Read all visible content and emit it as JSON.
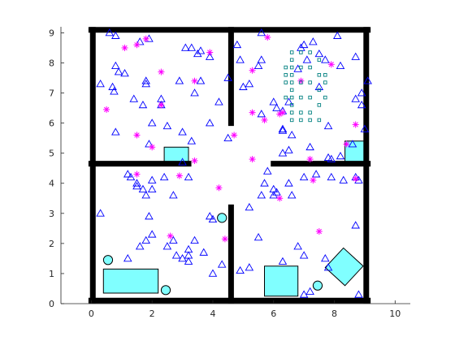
{
  "chart_data": {
    "type": "scatter",
    "title": "",
    "xlabel": "",
    "ylabel": "",
    "xlim": [
      -1,
      10.5
    ],
    "ylim": [
      0,
      9.2
    ],
    "x_ticks": [
      "0",
      "2",
      "4",
      "6",
      "8",
      "10"
    ],
    "y_ticks": [
      "0",
      "1",
      "2",
      "3",
      "4",
      "5",
      "6",
      "7",
      "8",
      "9"
    ],
    "grid": false,
    "legend": "none",
    "colors": {
      "wall": "#000000",
      "obstacle_fill": "#80ffff",
      "triangle": "#0000ff",
      "star": "#ff00ff",
      "square": "#008080"
    },
    "walls": [
      {
        "x": [
          0,
          9.1
        ],
        "y": [
          9.1,
          9.1
        ]
      },
      {
        "x": [
          0,
          9.1
        ],
        "y": [
          0.1,
          0.1
        ]
      },
      {
        "x": [
          0.05,
          0.05
        ],
        "y": [
          0.1,
          9.1
        ]
      },
      {
        "x": [
          9.05,
          9.05
        ],
        "y": [
          0.1,
          9.1
        ]
      },
      {
        "x": [
          4.6,
          4.6
        ],
        "y": [
          6.0,
          9.1
        ]
      },
      {
        "x": [
          4.6,
          4.6
        ],
        "y": [
          0.1,
          3.2
        ]
      },
      {
        "x": [
          0,
          3.2
        ],
        "y": [
          4.65,
          4.65
        ]
      },
      {
        "x": [
          6.0,
          9.1
        ],
        "y": [
          4.65,
          4.65
        ]
      }
    ],
    "rect_obstacles": [
      {
        "points": [
          [
            0.4,
            0.35
          ],
          [
            2.2,
            0.35
          ],
          [
            2.2,
            1.15
          ],
          [
            0.4,
            1.15
          ]
        ]
      },
      {
        "points": [
          [
            2.4,
            4.7
          ],
          [
            3.2,
            4.7
          ],
          [
            3.2,
            5.2
          ],
          [
            2.4,
            5.2
          ]
        ]
      },
      {
        "points": [
          [
            8.35,
            4.7
          ],
          [
            9.0,
            4.7
          ],
          [
            9.0,
            5.4
          ],
          [
            8.35,
            5.4
          ]
        ]
      },
      {
        "points": [
          [
            5.7,
            0.25
          ],
          [
            6.8,
            0.25
          ],
          [
            6.8,
            1.25
          ],
          [
            5.7,
            1.25
          ]
        ]
      },
      {
        "points": [
          [
            7.7,
            1.2
          ],
          [
            8.35,
            0.6
          ],
          [
            8.95,
            1.25
          ],
          [
            8.3,
            1.85
          ]
        ]
      }
    ],
    "circle_obstacles": [
      {
        "x": 0.55,
        "y": 1.45,
        "r": 0.15
      },
      {
        "x": 2.45,
        "y": 0.45,
        "r": 0.15
      },
      {
        "x": 4.3,
        "y": 2.85,
        "r": 0.15
      },
      {
        "x": 7.45,
        "y": 0.6,
        "r": 0.15
      }
    ],
    "series": [
      {
        "marker": "triangle",
        "points": [
          [
            0.3,
            7.3
          ],
          [
            0.6,
            9.0
          ],
          [
            0.8,
            8.9
          ],
          [
            0.7,
            7.2
          ],
          [
            0.8,
            7.9
          ],
          [
            0.9,
            7.7
          ],
          [
            0.8,
            5.7
          ],
          [
            0.75,
            7.05
          ],
          [
            1.1,
            7.65
          ],
          [
            1.4,
            6.8
          ],
          [
            1.6,
            8.7
          ],
          [
            1.7,
            6.6
          ],
          [
            1.8,
            7.4
          ],
          [
            1.8,
            7.3
          ],
          [
            1.9,
            8.8
          ],
          [
            2.0,
            6.0
          ],
          [
            1.9,
            5.3
          ],
          [
            2.3,
            6.8
          ],
          [
            2.3,
            6.6
          ],
          [
            2.5,
            5.9
          ],
          [
            2.9,
            7.4
          ],
          [
            3.1,
            8.5
          ],
          [
            3.3,
            8.5
          ],
          [
            3.4,
            7.0
          ],
          [
            3.5,
            8.3
          ],
          [
            3.6,
            8.4
          ],
          [
            3.0,
            5.7
          ],
          [
            3.3,
            5.4
          ],
          [
            3.9,
            6.0
          ],
          [
            3.9,
            8.2
          ],
          [
            3.6,
            7.4
          ],
          [
            4.2,
            6.7
          ],
          [
            4.5,
            7.5
          ],
          [
            4.5,
            5.5
          ],
          [
            4.8,
            8.6
          ],
          [
            4.9,
            8.1
          ],
          [
            5.0,
            7.2
          ],
          [
            5.2,
            7.3
          ],
          [
            5.5,
            7.9
          ],
          [
            5.6,
            9.0
          ],
          [
            5.6,
            6.3
          ],
          [
            5.6,
            8.1
          ],
          [
            6.0,
            6.7
          ],
          [
            6.1,
            6.5
          ],
          [
            6.3,
            6.4
          ],
          [
            6.3,
            5.8
          ],
          [
            6.3,
            5.75
          ],
          [
            6.5,
            6.7
          ],
          [
            6.6,
            5.6
          ],
          [
            6.8,
            7.8
          ],
          [
            6.9,
            8.5
          ],
          [
            7.0,
            8.6
          ],
          [
            7.1,
            8.1
          ],
          [
            7.3,
            8.7
          ],
          [
            7.5,
            7.2
          ],
          [
            7.5,
            8.3
          ],
          [
            7.7,
            8.1
          ],
          [
            7.8,
            5.9
          ],
          [
            8.1,
            8.9
          ],
          [
            8.2,
            7.9
          ],
          [
            8.6,
            5.3
          ],
          [
            8.7,
            6.8
          ],
          [
            8.9,
            6.6
          ],
          [
            9.0,
            5.8
          ],
          [
            9.1,
            7.4
          ],
          [
            6.3,
            5.0
          ],
          [
            6.5,
            5.1
          ],
          [
            7.2,
            5.2
          ],
          [
            7.8,
            4.85
          ],
          [
            7.9,
            4.8
          ],
          [
            8.2,
            4.9
          ],
          [
            8.7,
            8.2
          ],
          [
            8.9,
            7.0
          ],
          [
            0.3,
            3.0
          ],
          [
            1.2,
            4.3
          ],
          [
            1.3,
            4.2
          ],
          [
            1.5,
            4.0
          ],
          [
            1.5,
            3.9
          ],
          [
            1.7,
            3.8
          ],
          [
            1.8,
            3.6
          ],
          [
            2.0,
            4.1
          ],
          [
            2.0,
            3.8
          ],
          [
            2.4,
            4.2
          ],
          [
            2.7,
            3.6
          ],
          [
            3.0,
            4.7
          ],
          [
            3.2,
            4.2
          ],
          [
            1.9,
            2.9
          ],
          [
            2.0,
            2.3
          ],
          [
            1.8,
            2.1
          ],
          [
            1.6,
            1.9
          ],
          [
            1.2,
            1.5
          ],
          [
            2.5,
            1.9
          ],
          [
            2.7,
            2.1
          ],
          [
            2.8,
            1.6
          ],
          [
            3.2,
            1.8
          ],
          [
            3.0,
            1.5
          ],
          [
            3.4,
            2.1
          ],
          [
            3.9,
            2.9
          ],
          [
            4.0,
            2.8
          ],
          [
            3.7,
            1.7
          ],
          [
            3.2,
            1.6
          ],
          [
            4.3,
            1.3
          ],
          [
            4.0,
            1.0
          ],
          [
            3.2,
            1.4
          ],
          [
            4.9,
            1.1
          ],
          [
            5.2,
            1.2
          ],
          [
            5.5,
            2.2
          ],
          [
            5.2,
            3.2
          ],
          [
            5.6,
            3.6
          ],
          [
            5.7,
            4.0
          ],
          [
            5.8,
            4.4
          ],
          [
            6.0,
            3.8
          ],
          [
            6.0,
            3.6
          ],
          [
            6.1,
            3.7
          ],
          [
            6.5,
            4.0
          ],
          [
            6.6,
            3.6
          ],
          [
            7.0,
            4.2
          ],
          [
            7.4,
            4.3
          ],
          [
            7.9,
            4.2
          ],
          [
            8.3,
            4.1
          ],
          [
            8.7,
            4.2
          ],
          [
            8.8,
            4.1
          ],
          [
            6.8,
            1.9
          ],
          [
            7.0,
            1.6
          ],
          [
            7.7,
            1.5
          ],
          [
            7.8,
            1.2
          ],
          [
            8.7,
            2.6
          ],
          [
            7.2,
            0.4
          ],
          [
            7.0,
            0.3
          ],
          [
            8.8,
            0.3
          ],
          [
            6.3,
            1.4
          ]
        ]
      },
      {
        "marker": "star",
        "points": [
          [
            0.5,
            6.45
          ],
          [
            1.1,
            8.5
          ],
          [
            1.5,
            8.6
          ],
          [
            1.8,
            8.8
          ],
          [
            2.3,
            7.7
          ],
          [
            2.3,
            6.6
          ],
          [
            3.4,
            7.4
          ],
          [
            3.9,
            8.35
          ],
          [
            1.5,
            5.6
          ],
          [
            2.0,
            5.2
          ],
          [
            4.7,
            5.6
          ],
          [
            5.3,
            7.75
          ],
          [
            5.3,
            6.35
          ],
          [
            5.8,
            8.85
          ],
          [
            5.7,
            6.1
          ],
          [
            6.3,
            6.35
          ],
          [
            6.2,
            6.3
          ],
          [
            6.9,
            7.4
          ],
          [
            7.9,
            7.95
          ],
          [
            7.2,
            4.8
          ],
          [
            8.4,
            5.3
          ],
          [
            8.7,
            5.95
          ],
          [
            8.7,
            4.15
          ],
          [
            7.3,
            4.1
          ],
          [
            6.2,
            3.5
          ],
          [
            5.3,
            4.8
          ],
          [
            4.4,
            2.15
          ],
          [
            3.4,
            4.75
          ],
          [
            4.2,
            3.85
          ],
          [
            2.9,
            4.25
          ],
          [
            2.6,
            2.25
          ],
          [
            1.5,
            4.3
          ],
          [
            7.5,
            2.4
          ]
        ]
      },
      {
        "marker": "square",
        "points": [
          [
            6.6,
            8.35
          ],
          [
            6.6,
            8.1
          ],
          [
            6.6,
            7.85
          ],
          [
            6.6,
            7.6
          ],
          [
            6.6,
            7.35
          ],
          [
            6.6,
            7.1
          ],
          [
            6.6,
            6.85
          ],
          [
            6.6,
            6.6
          ],
          [
            6.6,
            6.35
          ],
          [
            6.6,
            6.1
          ],
          [
            6.9,
            8.35
          ],
          [
            6.9,
            7.85
          ],
          [
            6.9,
            7.35
          ],
          [
            6.9,
            6.85
          ],
          [
            6.9,
            6.35
          ],
          [
            6.9,
            6.1
          ],
          [
            7.2,
            8.35
          ],
          [
            7.2,
            7.85
          ],
          [
            7.2,
            7.35
          ],
          [
            7.2,
            6.85
          ],
          [
            7.2,
            6.35
          ],
          [
            7.2,
            6.1
          ],
          [
            7.5,
            8.1
          ],
          [
            7.5,
            7.6
          ],
          [
            7.5,
            7.1
          ],
          [
            7.5,
            6.6
          ],
          [
            7.5,
            6.1
          ],
          [
            6.4,
            7.85
          ],
          [
            6.4,
            7.35
          ],
          [
            6.4,
            6.85
          ],
          [
            6.4,
            7.6
          ],
          [
            7.7,
            7.35
          ],
          [
            7.7,
            6.85
          ],
          [
            7.7,
            7.6
          ]
        ]
      }
    ]
  }
}
